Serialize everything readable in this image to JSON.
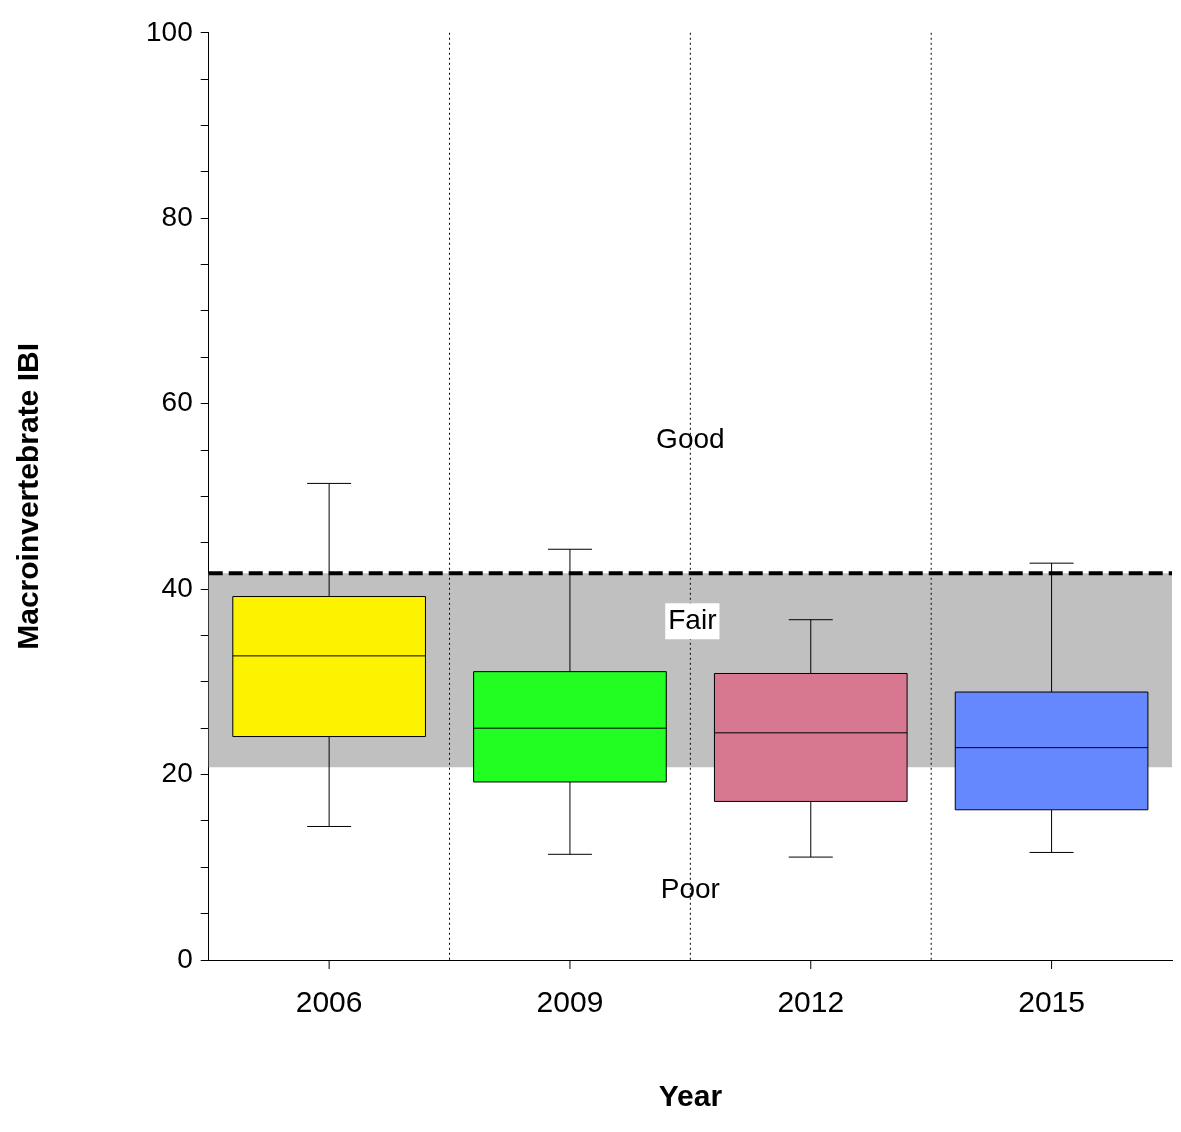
{
  "chart_data": {
    "type": "box",
    "xlabel": "Year",
    "ylabel": "Macroinvertebrate IBI",
    "categories": [
      "2006",
      "2009",
      "2012",
      "2015"
    ],
    "colors": [
      "#fdf200",
      "#22fd22",
      "#d87890",
      "#6688ff"
    ],
    "boxes": [
      {
        "low": 14.4,
        "q1": 24.1,
        "median": 32.8,
        "q3": 39.2,
        "high": 51.4
      },
      {
        "low": 11.4,
        "q1": 19.2,
        "median": 25.0,
        "q3": 31.1,
        "high": 44.3
      },
      {
        "low": 11.1,
        "q1": 17.1,
        "median": 24.5,
        "q3": 30.9,
        "high": 36.7
      },
      {
        "low": 11.6,
        "q1": 16.2,
        "median": 22.9,
        "q3": 28.9,
        "high": 42.8
      }
    ],
    "ylim": [
      0,
      100
    ],
    "yticks": [
      0,
      {
        "value": 5,
        "label": null
      },
      {
        "value": 10,
        "label": null
      },
      {
        "value": 15,
        "label": null
      },
      20,
      {
        "value": 25,
        "label": null
      },
      {
        "value": 30,
        "label": null
      },
      {
        "value": 35,
        "label": null
      },
      40,
      {
        "value": 45,
        "label": null
      },
      {
        "value": 50,
        "label": null
      },
      {
        "value": 55,
        "label": null
      },
      60,
      {
        "value": 65,
        "label": null
      },
      {
        "value": 70,
        "label": null
      },
      {
        "value": 75,
        "label": null
      },
      80,
      {
        "value": 85,
        "label": null
      },
      {
        "value": 90,
        "label": null
      },
      {
        "value": 95,
        "label": null
      },
      100
    ],
    "bands": [
      {
        "axis": "y",
        "from": 20.8,
        "to": 41.7,
        "label": "Fair",
        "color": "#c0c0c0"
      }
    ],
    "ref_lines": [
      {
        "axis": "y",
        "value": 41.7,
        "color": "#000000",
        "line_style": "dashed"
      }
    ],
    "annotations": [
      "Good",
      "Poor"
    ],
    "grid": "x",
    "legend": false
  }
}
